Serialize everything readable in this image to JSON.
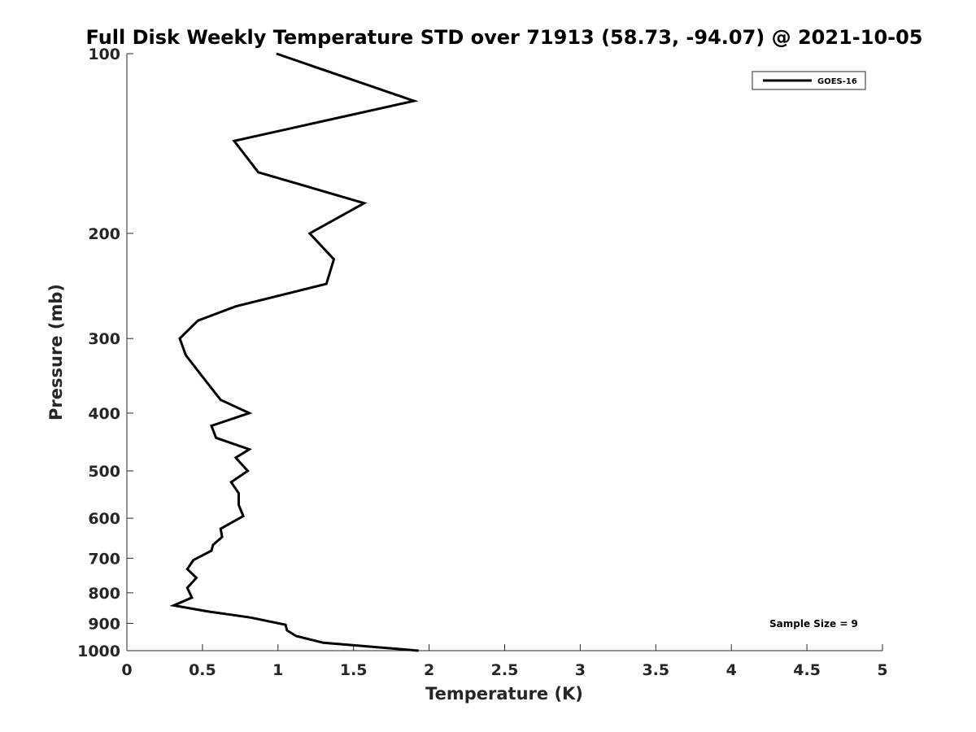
{
  "chart_data": {
    "type": "line",
    "title": "Full Disk Weekly Temperature STD over 71913 (58.73, -94.07) @ 2021-10-05",
    "xlabel": "Temperature (K)",
    "ylabel": "Pressure (mb)",
    "xlim": [
      0,
      5
    ],
    "ylim": [
      100,
      1000
    ],
    "y_scale": "log",
    "y_reversed": true,
    "x_ticks": [
      "0",
      "0.5",
      "1",
      "1.5",
      "2",
      "2.5",
      "3",
      "3.5",
      "4",
      "4.5",
      "5"
    ],
    "y_ticks": [
      "100",
      "200",
      "300",
      "400",
      "500",
      "600",
      "700",
      "800",
      "900",
      "1000"
    ],
    "grid": false,
    "legend_position": "top-right",
    "annotation": "Sample Size = 9",
    "series": [
      {
        "name": "GOES-16",
        "color": "#000000",
        "points": [
          [
            0.99,
            100
          ],
          [
            1.9,
            120
          ],
          [
            0.71,
            140
          ],
          [
            0.87,
            158
          ],
          [
            1.57,
            178
          ],
          [
            1.21,
            200
          ],
          [
            1.37,
            221
          ],
          [
            1.32,
            243
          ],
          [
            0.72,
            265
          ],
          [
            0.47,
            280
          ],
          [
            0.35,
            300
          ],
          [
            0.39,
            320
          ],
          [
            0.54,
            358
          ],
          [
            0.62,
            380
          ],
          [
            0.81,
            400
          ],
          [
            0.56,
            420
          ],
          [
            0.59,
            440
          ],
          [
            0.81,
            460
          ],
          [
            0.72,
            475
          ],
          [
            0.8,
            500
          ],
          [
            0.69,
            522
          ],
          [
            0.74,
            545
          ],
          [
            0.74,
            570
          ],
          [
            0.77,
            595
          ],
          [
            0.62,
            625
          ],
          [
            0.63,
            645
          ],
          [
            0.57,
            665
          ],
          [
            0.56,
            680
          ],
          [
            0.44,
            705
          ],
          [
            0.4,
            730
          ],
          [
            0.46,
            755
          ],
          [
            0.4,
            785
          ],
          [
            0.43,
            815
          ],
          [
            0.31,
            840
          ],
          [
            0.54,
            860
          ],
          [
            0.82,
            880
          ],
          [
            1.05,
            905
          ],
          [
            1.06,
            925
          ],
          [
            1.12,
            945
          ],
          [
            1.3,
            970
          ],
          [
            1.93,
            1000
          ]
        ]
      }
    ]
  }
}
